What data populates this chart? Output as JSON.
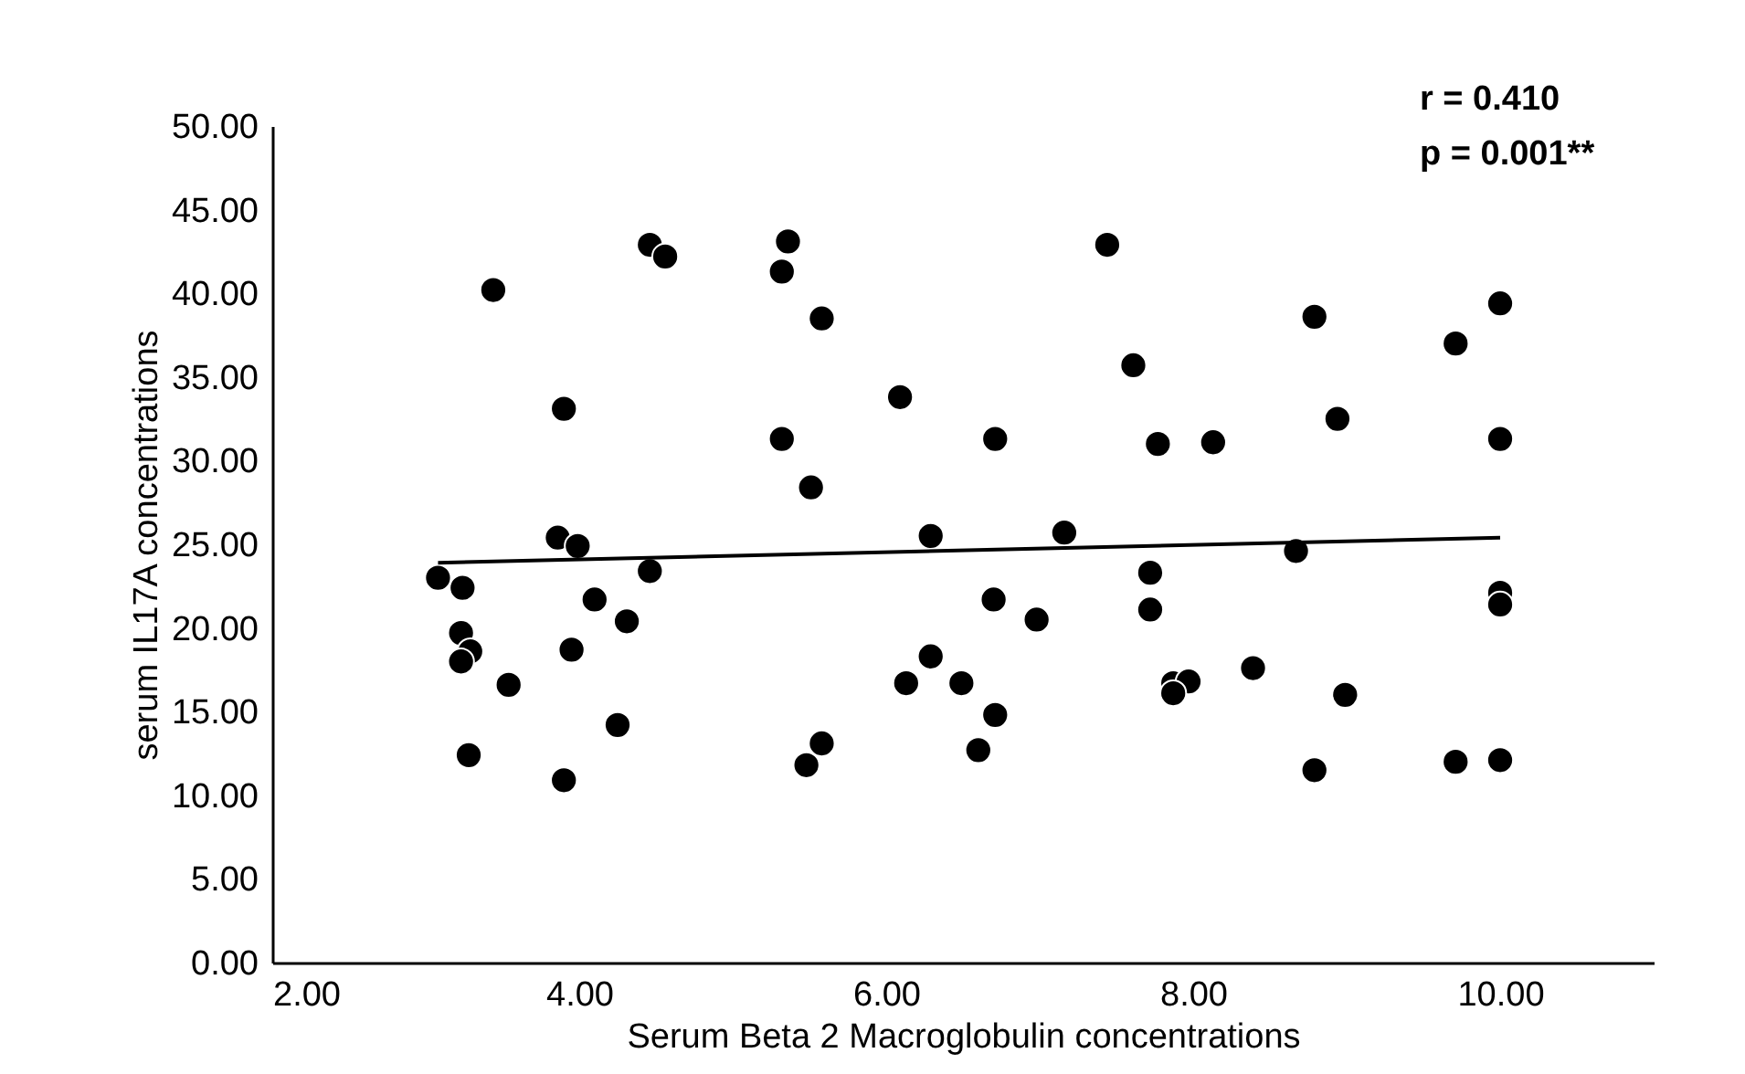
{
  "chart_data": {
    "type": "scatter",
    "xlabel": "Serum Beta 2 Macroglobulin concentrations",
    "ylabel": "serum IL17A concentrations",
    "annotations": [
      "r =  0.410",
      "p = 0.001**"
    ],
    "xlim": [
      2,
      11
    ],
    "xticks": [
      {
        "value": 2,
        "label": "2.00"
      },
      {
        "value": 4,
        "label": "4.00"
      },
      {
        "value": 6,
        "label": "6.00"
      },
      {
        "value": 8,
        "label": "8.00"
      },
      {
        "value": 10,
        "label": "10.00"
      }
    ],
    "ylim": [
      0,
      50
    ],
    "yticks": [
      {
        "value": 0,
        "label": "0.00"
      },
      {
        "value": 5,
        "label": "5.00"
      },
      {
        "value": 10,
        "label": "10.00"
      },
      {
        "value": 15,
        "label": "15.00"
      },
      {
        "value": 20,
        "label": "20.00"
      },
      {
        "value": 25,
        "label": "25.00"
      },
      {
        "value": 30,
        "label": "30.00"
      },
      {
        "value": 35,
        "label": "35.00"
      },
      {
        "value": 40,
        "label": "40.00"
      },
      {
        "value": 45,
        "label": "45.00"
      },
      {
        "value": 50,
        "label": "50.00"
      }
    ],
    "grid": false,
    "series": [
      {
        "color": "#000000",
        "marker": "circle",
        "x": [
          4.46,
          4.56,
          5.36,
          5.32,
          5.58,
          3.44,
          6.09,
          3.9,
          5.32,
          5.51,
          3.86,
          3.99,
          3.08,
          3.24,
          4.46,
          4.1,
          4.31,
          3.23,
          3.29,
          3.23,
          3.95,
          3.54,
          4.25,
          3.28,
          3.9,
          5.58,
          5.48,
          7.44,
          8.79,
          10.0,
          9.71,
          7.61,
          8.94,
          6.71,
          7.77,
          8.13,
          10.0,
          6.29,
          7.16,
          8.67,
          7.72,
          6.7,
          6.98,
          7.72,
          10.0,
          10.0,
          6.29,
          6.13,
          6.49,
          6.71,
          6.6,
          7.87,
          7.97,
          7.87,
          8.39,
          8.99,
          8.79,
          9.71,
          10.0
        ],
        "values": [
          42.9,
          42.2,
          43.1,
          41.3,
          38.5,
          40.2,
          33.8,
          33.1,
          31.3,
          28.4,
          25.4,
          24.9,
          23.0,
          22.4,
          23.4,
          21.7,
          20.4,
          19.7,
          18.6,
          18.0,
          18.7,
          16.6,
          14.2,
          12.4,
          10.9,
          13.1,
          11.8,
          42.9,
          38.6,
          39.4,
          37.0,
          35.7,
          32.5,
          31.3,
          31.0,
          31.1,
          31.3,
          25.5,
          25.7,
          24.6,
          23.3,
          21.7,
          20.5,
          21.1,
          22.1,
          21.4,
          18.3,
          16.7,
          16.7,
          14.8,
          12.7,
          16.7,
          16.8,
          16.1,
          17.6,
          16.0,
          11.5,
          12.0,
          12.1
        ]
      },
      {
        "type": "line",
        "line_style": "solid",
        "color": "#000000",
        "x": [
          3.08,
          10.0
        ],
        "values": [
          23.9,
          25.4
        ]
      }
    ]
  }
}
